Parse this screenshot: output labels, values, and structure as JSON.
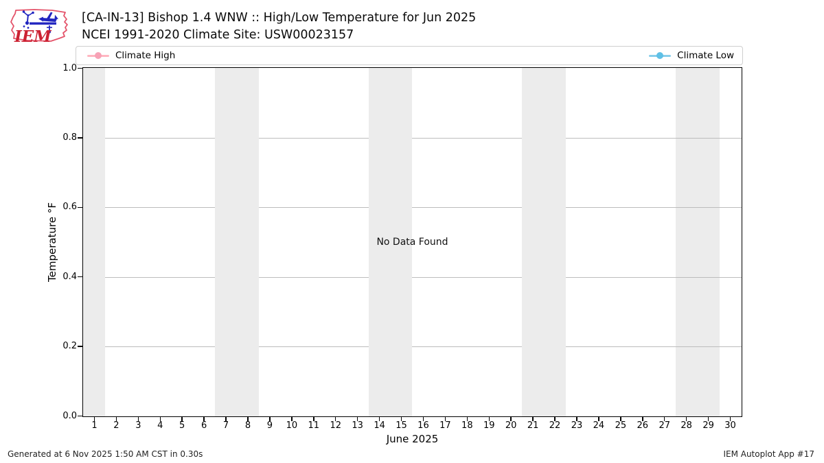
{
  "header": {
    "title_line1": "[CA-IN-13] Bishop 1.4 WNW :: High/Low Temperature for Jun 2025",
    "title_line2": "NCEI 1991-2020 Climate Site: USW00023157",
    "logo": {
      "text": "IEM",
      "outline_color": "#e4536a",
      "instrument_color": "#2226c0",
      "text_color": "#cc2233"
    }
  },
  "legend": {
    "entries": [
      {
        "label": "Climate High",
        "line_color": "#ffb6c1",
        "marker_color": "#f7a2b6"
      },
      {
        "label": "Climate Low",
        "line_color": "#87ceeb",
        "marker_color": "#5fc0e6"
      }
    ]
  },
  "chart_data": {
    "type": "line",
    "title": "[CA-IN-13] Bishop 1.4 WNW :: High/Low Temperature for Jun 2025",
    "subtitle": "NCEI 1991-2020 Climate Site: USW00023157",
    "xlabel": "June 2025",
    "ylabel": "Temperature °F",
    "xlim": [
      0.5,
      30.5
    ],
    "ylim": [
      0.0,
      1.0
    ],
    "x_ticks": [
      1,
      2,
      3,
      4,
      5,
      6,
      7,
      8,
      9,
      10,
      11,
      12,
      13,
      14,
      15,
      16,
      17,
      18,
      19,
      20,
      21,
      22,
      23,
      24,
      25,
      26,
      27,
      28,
      29,
      30
    ],
    "y_ticks": [
      {
        "label": "0.0",
        "value": 0.0
      },
      {
        "label": "0.2",
        "value": 0.2
      },
      {
        "label": "0.4",
        "value": 0.4
      },
      {
        "label": "0.6",
        "value": 0.6
      },
      {
        "label": "0.8",
        "value": 0.8
      },
      {
        "label": "1.0",
        "value": 1.0
      }
    ],
    "grid": "horizontal",
    "legend_position": "top",
    "series": [
      {
        "name": "Climate High",
        "color": "#ffb6c1",
        "x": [],
        "y": []
      },
      {
        "name": "Climate Low",
        "color": "#87ceeb",
        "x": [],
        "y": []
      }
    ],
    "no_data_message": "No Data Found",
    "weekend_shading": {
      "color": "#ececec",
      "day_ranges": [
        [
          0.5,
          1.5
        ],
        [
          6.5,
          8.5
        ],
        [
          13.5,
          15.5
        ],
        [
          20.5,
          22.5
        ],
        [
          27.5,
          29.5
        ]
      ]
    }
  },
  "footer": {
    "left": "Generated at 6 Nov 2025 1:50 AM CST in 0.30s",
    "right": "IEM Autoplot App #17"
  }
}
